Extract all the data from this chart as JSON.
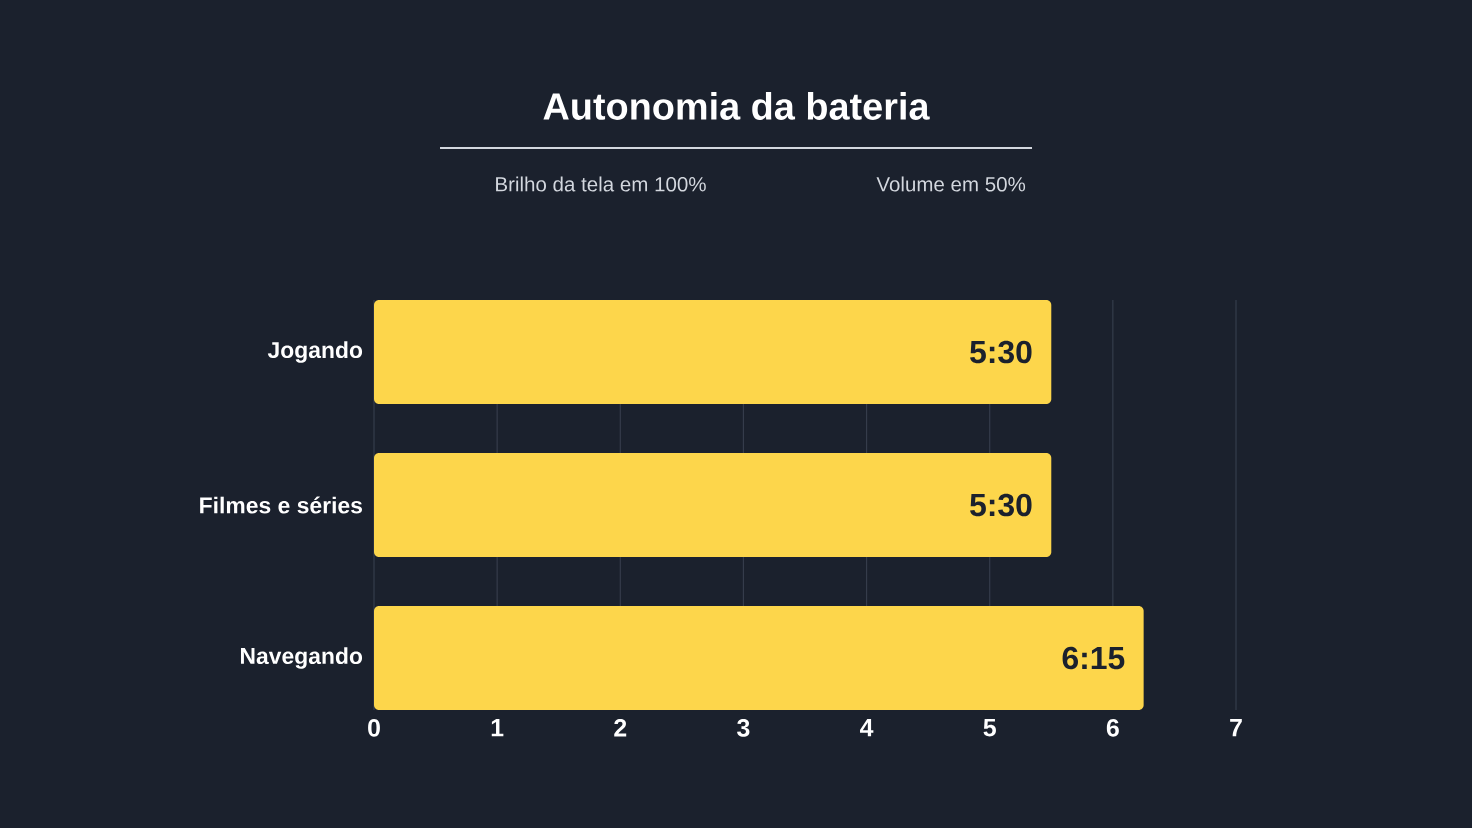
{
  "chart_data": {
    "type": "bar",
    "orientation": "horizontal",
    "title": "Autonomia da bateria",
    "annotations": [
      "Brilho da tela em 100%",
      "Volume em 50%"
    ],
    "categories": [
      "Jogando",
      "Filmes e séries",
      "Navegando"
    ],
    "values": [
      5.5,
      5.5,
      6.25
    ],
    "value_labels": [
      "5:30",
      "5:30",
      "6:15"
    ],
    "color": "#fdd64b",
    "xlim": [
      0,
      7
    ],
    "xticks": [
      0,
      1,
      2,
      3,
      4,
      5,
      6,
      7
    ],
    "grid": "x"
  }
}
